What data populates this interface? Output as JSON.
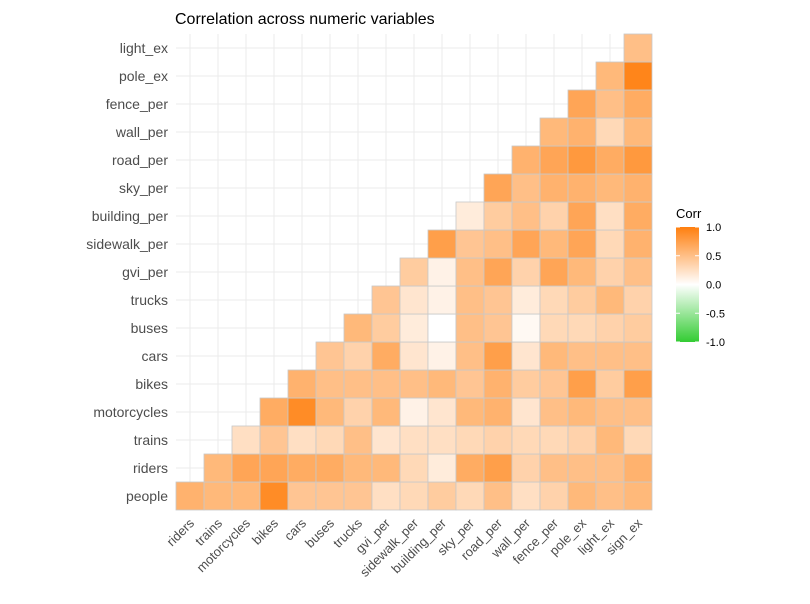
{
  "chart_data": {
    "type": "heatmap",
    "title": "Correlation across numeric variables",
    "x_categories": [
      "riders",
      "trains",
      "motorcycles",
      "bikes",
      "cars",
      "buses",
      "trucks",
      "gvi_per",
      "sidewalk_per",
      "building_per",
      "sky_per",
      "road_per",
      "wall_per",
      "fence_per",
      "pole_ex",
      "light_ex",
      "sign_ex"
    ],
    "y_categories": [
      "people",
      "riders",
      "trains",
      "motorcycles",
      "bikes",
      "cars",
      "buses",
      "trucks",
      "gvi_per",
      "sidewalk_per",
      "building_per",
      "sky_per",
      "road_per",
      "wall_per",
      "fence_per",
      "pole_ex",
      "light_ex"
    ],
    "rows": [
      [
        0.6,
        0.55,
        0.55,
        0.9,
        0.45,
        0.45,
        0.45,
        0.25,
        0.3,
        0.4,
        0.3,
        0.5,
        0.25,
        0.35,
        0.55,
        0.5,
        0.55
      ],
      [
        0.55,
        0.7,
        0.7,
        0.65,
        0.65,
        0.55,
        0.55,
        0.3,
        0.15,
        0.65,
        0.75,
        0.35,
        0.5,
        0.5,
        0.5,
        0.6
      ],
      [
        0.25,
        0.45,
        0.25,
        0.3,
        0.5,
        0.2,
        0.25,
        0.25,
        0.3,
        0.35,
        0.3,
        0.3,
        0.35,
        0.55,
        0.3
      ],
      [
        0.65,
        0.9,
        0.55,
        0.35,
        0.55,
        0.1,
        0.2,
        0.55,
        0.6,
        0.2,
        0.5,
        0.55,
        0.5,
        0.5
      ],
      [
        0.6,
        0.5,
        0.5,
        0.5,
        0.5,
        0.55,
        0.45,
        0.6,
        0.4,
        0.45,
        0.75,
        0.4,
        0.75
      ],
      [
        0.45,
        0.35,
        0.65,
        0.2,
        0.1,
        0.5,
        0.75,
        0.2,
        0.55,
        0.5,
        0.5,
        0.5
      ],
      [
        0.55,
        0.4,
        0.15,
        0.0,
        0.5,
        0.45,
        0.05,
        0.3,
        0.3,
        0.35,
        0.4
      ],
      [
        0.45,
        0.2,
        0.1,
        0.5,
        0.45,
        0.15,
        0.3,
        0.4,
        0.55,
        0.35
      ],
      [
        0.4,
        0.1,
        0.5,
        0.7,
        0.35,
        0.7,
        0.55,
        0.35,
        0.5
      ],
      [
        0.75,
        0.45,
        0.5,
        0.7,
        0.55,
        0.7,
        0.3,
        0.6
      ],
      [
        0.15,
        0.4,
        0.5,
        0.35,
        0.7,
        0.25,
        0.65
      ],
      [
        0.7,
        0.5,
        0.6,
        0.6,
        0.55,
        0.6
      ],
      [
        0.6,
        0.7,
        0.8,
        0.65,
        0.8
      ],
      [
        0.55,
        0.6,
        0.3,
        0.55
      ],
      [
        0.7,
        0.5,
        0.65
      ],
      [
        0.55,
        0.95
      ],
      [
        0.5
      ]
    ],
    "legend": {
      "title": "Corr",
      "ticks": [
        "1.0",
        "0.5",
        "0.0",
        "-0.5",
        "-1.0"
      ],
      "values": [
        1.0,
        0.5,
        0.0,
        -0.5,
        -1.0
      ],
      "placement": "right",
      "low_color": "#33cc33",
      "mid_color": "#ffffff",
      "high_color": "#ff7f0e"
    },
    "grid": true
  }
}
